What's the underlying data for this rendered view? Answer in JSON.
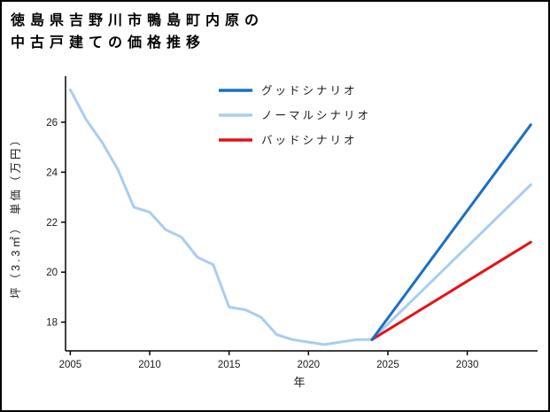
{
  "chart_data": {
    "type": "line",
    "title": "徳島県吉野川市鴨島町内原の中古戸建ての価格推移",
    "title_lines": [
      "徳島県吉野川市鴨島町内原の",
      "中古戸建ての価格推移"
    ],
    "xlabel": "年",
    "ylabel": "坪（3.3㎡） 単価（万円）",
    "xlim": [
      2004.7,
      2034.15
    ],
    "ylim": [
      16.85,
      27.7
    ],
    "xticks": [
      2005,
      2010,
      2015,
      2020,
      2025,
      2030
    ],
    "yticks": [
      18,
      20,
      22,
      24,
      26
    ],
    "grid": false,
    "legend_position": "top-center",
    "axis_color": "#000000",
    "series": [
      {
        "id": "good-scenario",
        "name": "グッドシナリオ",
        "color": "#1a6fc4",
        "width": 3,
        "z": 3,
        "x": [
          2024,
          2034
        ],
        "values": [
          17.3,
          25.9
        ]
      },
      {
        "id": "normal-scenario",
        "name": "ノーマルシナリオ",
        "color": "#a9cdf0",
        "width": 3,
        "z": 1,
        "x": [
          2005,
          2006,
          2007,
          2008,
          2009,
          2010,
          2011,
          2012,
          2013,
          2014,
          2015,
          2016,
          2017,
          2018,
          2019,
          2020,
          2021,
          2022,
          2023,
          2024,
          2034
        ],
        "values": [
          27.3,
          26.1,
          25.2,
          24.1,
          22.6,
          22.4,
          21.7,
          21.4,
          20.6,
          20.3,
          18.6,
          18.5,
          18.2,
          17.5,
          17.3,
          17.2,
          17.1,
          17.2,
          17.3,
          17.3,
          23.5
        ]
      },
      {
        "id": "bad-scenario",
        "name": "バッドシナリオ",
        "color": "#e31219",
        "width": 3,
        "z": 2,
        "x": [
          2024,
          2034
        ],
        "values": [
          17.3,
          21.2
        ]
      }
    ]
  }
}
